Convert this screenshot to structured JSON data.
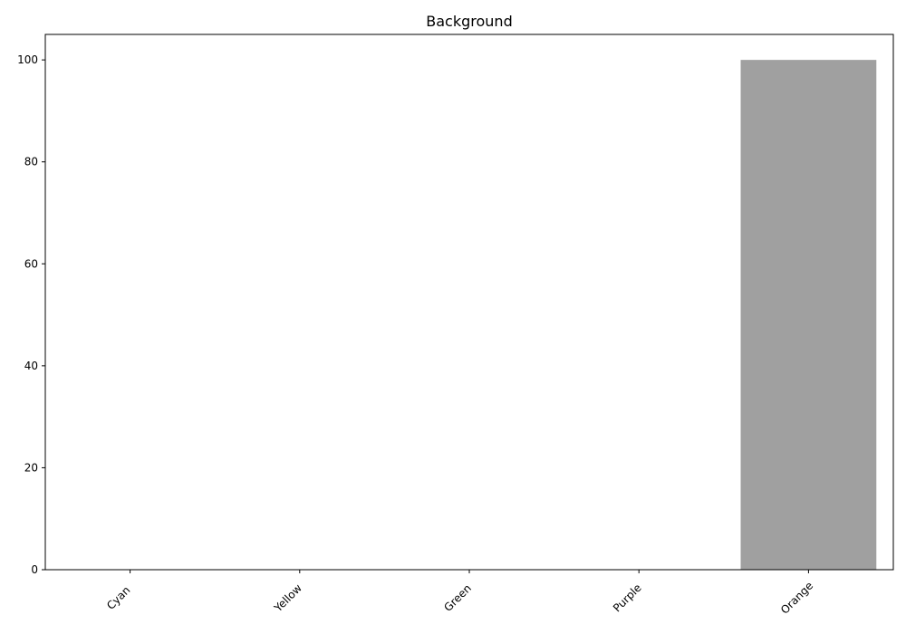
{
  "chart_data": {
    "type": "bar",
    "title": "Background",
    "xlabel": "",
    "ylabel": "",
    "categories": [
      "Cyan",
      "Yellow",
      "Green",
      "Purple",
      "Orange"
    ],
    "values": [
      0,
      0,
      0,
      0,
      100
    ],
    "ylim": [
      0,
      105
    ],
    "yticks": [
      0,
      20,
      40,
      60,
      80,
      100
    ],
    "bar_color": "#a0a0a0",
    "grid": false,
    "legend": "none"
  }
}
